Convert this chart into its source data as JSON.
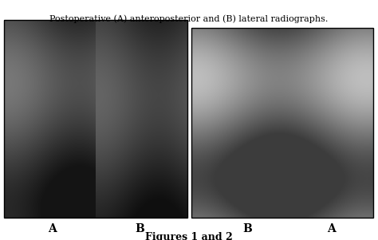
{
  "title": "Figures 1 and 2",
  "caption": "Postoperative (A) anteroposterior and (B) lateral radiographs.",
  "background_color": "#ffffff",
  "border_color": "#000000",
  "label_A_left": "A",
  "label_B_left": "B",
  "label_B_right": "B",
  "label_A_right": "A",
  "title_fontsize": 9,
  "label_fontsize": 10,
  "caption_fontsize": 8,
  "fig_width": 4.74,
  "fig_height": 3.01,
  "dpi": 100
}
